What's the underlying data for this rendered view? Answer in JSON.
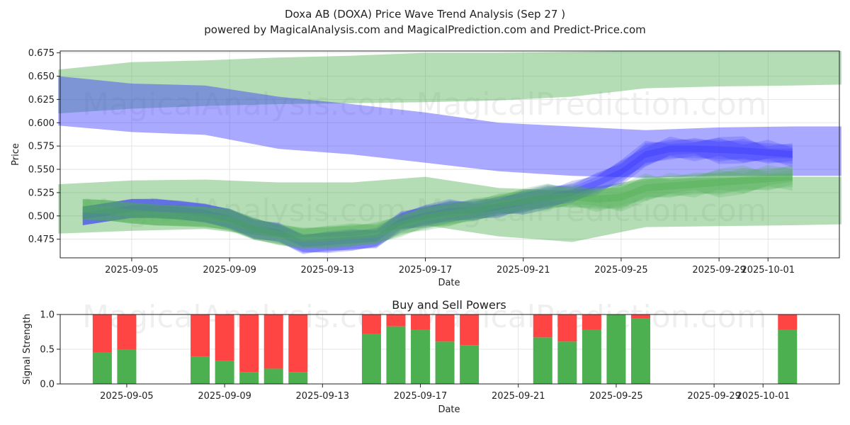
{
  "title": "Doxa AB (DOXA) Price Wave Trend Analysis (Sep 27 )",
  "subtitle": "powered by MagicalAnalysis.com and MagicalPrediction.com and Predict-Price.com",
  "watermarks": [
    "MagicalAnalysis.com",
    "MagicalPrediction.com"
  ],
  "colors": {
    "green_band": "#4caf50",
    "blue_band": "#3333ff",
    "buy": "#4caf50",
    "sell": "#ff4444",
    "grid": "#dddddd",
    "axis": "#222222"
  },
  "chart_data": [
    {
      "type": "area",
      "title": "",
      "xlabel": "Date",
      "ylabel": "Price",
      "ylim": [
        0.455,
        0.677
      ],
      "x_ticks": [
        "2025-09-05",
        "2025-09-09",
        "2025-09-13",
        "2025-09-17",
        "2025-09-21",
        "2025-09-25",
        "2025-09-29",
        "2025-10-01"
      ],
      "y_ticks": [
        "0.475",
        "0.500",
        "0.525",
        "0.550",
        "0.575",
        "0.600",
        "0.625",
        "0.650",
        "0.675"
      ],
      "grid": true,
      "series": [
        {
          "name": "green upper band",
          "color": "green",
          "dates": [
            "2025-09-02",
            "2025-09-05",
            "2025-09-08",
            "2025-09-11",
            "2025-09-14",
            "2025-09-17",
            "2025-09-20",
            "2025-09-23",
            "2025-09-26",
            "2025-09-29",
            "2025-10-02",
            "2025-10-04"
          ],
          "upper": [
            0.657,
            0.665,
            0.667,
            0.67,
            0.672,
            0.675,
            0.675,
            0.676,
            0.677,
            0.677,
            0.677,
            0.677
          ],
          "lower": [
            0.61,
            0.615,
            0.618,
            0.62,
            0.621,
            0.622,
            0.624,
            0.628,
            0.637,
            0.639,
            0.64,
            0.641
          ]
        },
        {
          "name": "blue upper band",
          "color": "blue",
          "dates": [
            "2025-09-02",
            "2025-09-05",
            "2025-09-08",
            "2025-09-11",
            "2025-09-14",
            "2025-09-17",
            "2025-09-20",
            "2025-09-23",
            "2025-09-26",
            "2025-09-29",
            "2025-10-02",
            "2025-10-04"
          ],
          "upper": [
            0.65,
            0.642,
            0.64,
            0.628,
            0.62,
            0.611,
            0.6,
            0.596,
            0.592,
            0.595,
            0.596,
            0.596
          ],
          "lower": [
            0.597,
            0.59,
            0.587,
            0.572,
            0.566,
            0.557,
            0.548,
            0.543,
            0.541,
            0.543,
            0.543,
            0.543
          ]
        },
        {
          "name": "green lower band",
          "color": "green",
          "dates": [
            "2025-09-02",
            "2025-09-05",
            "2025-09-08",
            "2025-09-11",
            "2025-09-14",
            "2025-09-17",
            "2025-09-20",
            "2025-09-23",
            "2025-09-26",
            "2025-09-29",
            "2025-10-02",
            "2025-10-04"
          ],
          "upper": [
            0.534,
            0.538,
            0.539,
            0.536,
            0.536,
            0.542,
            0.53,
            0.527,
            0.54,
            0.541,
            0.542,
            0.542
          ],
          "lower": [
            0.481,
            0.484,
            0.486,
            0.477,
            0.478,
            0.49,
            0.478,
            0.472,
            0.488,
            0.489,
            0.49,
            0.491
          ]
        },
        {
          "name": "price wave (blue)",
          "color": "blue",
          "dates": [
            "2025-09-03",
            "2025-09-04",
            "2025-09-05",
            "2025-09-06",
            "2025-09-07",
            "2025-09-08",
            "2025-09-09",
            "2025-09-10",
            "2025-09-11",
            "2025-09-12",
            "2025-09-13",
            "2025-09-14",
            "2025-09-15",
            "2025-09-16",
            "2025-09-17",
            "2025-09-18",
            "2025-09-19",
            "2025-09-20",
            "2025-09-21",
            "2025-09-22",
            "2025-09-23",
            "2025-09-24",
            "2025-09-25",
            "2025-09-26",
            "2025-09-27",
            "2025-09-28",
            "2025-09-29",
            "2025-09-30",
            "2025-10-01",
            "2025-10-02"
          ],
          "values": [
            0.5,
            0.504,
            0.508,
            0.508,
            0.506,
            0.503,
            0.497,
            0.486,
            0.482,
            0.47,
            0.472,
            0.474,
            0.476,
            0.494,
            0.5,
            0.505,
            0.506,
            0.51,
            0.515,
            0.52,
            0.525,
            0.535,
            0.547,
            0.566,
            0.572,
            0.572,
            0.571,
            0.57,
            0.568,
            0.566
          ],
          "spread": 0.01
        },
        {
          "name": "price wave (green)",
          "color": "green",
          "dates": [
            "2025-09-03",
            "2025-09-04",
            "2025-09-05",
            "2025-09-06",
            "2025-09-07",
            "2025-09-08",
            "2025-09-09",
            "2025-09-10",
            "2025-09-11",
            "2025-09-12",
            "2025-09-13",
            "2025-09-14",
            "2025-09-15",
            "2025-09-16",
            "2025-09-17",
            "2025-09-18",
            "2025-09-19",
            "2025-09-20",
            "2025-09-21",
            "2025-09-22",
            "2025-09-23",
            "2025-09-24",
            "2025-09-25",
            "2025-09-26",
            "2025-09-27",
            "2025-09-28",
            "2025-09-29",
            "2025-09-30",
            "2025-10-01",
            "2025-10-02"
          ],
          "values": [
            0.507,
            0.506,
            0.503,
            0.501,
            0.5,
            0.499,
            0.496,
            0.486,
            0.48,
            0.476,
            0.477,
            0.479,
            0.481,
            0.49,
            0.498,
            0.502,
            0.506,
            0.512,
            0.516,
            0.52,
            0.521,
            0.518,
            0.52,
            0.53,
            0.532,
            0.534,
            0.536,
            0.538,
            0.54,
            0.542
          ],
          "spread": 0.011
        }
      ]
    },
    {
      "type": "bar",
      "title": "Buy and Sell Powers",
      "xlabel": "Date",
      "ylabel": "Signal Strength",
      "ylim": [
        0,
        1
      ],
      "x_ticks": [
        "2025-09-05",
        "2025-09-09",
        "2025-09-13",
        "2025-09-17",
        "2025-09-21",
        "2025-09-25",
        "2025-09-29",
        "2025-10-01"
      ],
      "y_ticks": [
        "0.0",
        "0.5",
        "1.0"
      ],
      "grid": true,
      "categories": [
        "2025-09-04",
        "2025-09-05",
        "2025-09-08",
        "2025-09-09",
        "2025-09-10",
        "2025-09-11",
        "2025-09-12",
        "2025-09-15",
        "2025-09-16",
        "2025-09-17",
        "2025-09-18",
        "2025-09-19",
        "2025-09-22",
        "2025-09-23",
        "2025-09-24",
        "2025-09-25",
        "2025-09-26",
        "2025-10-02"
      ],
      "series": [
        {
          "name": "Buy",
          "values": [
            0.45,
            0.5,
            0.39,
            0.33,
            0.17,
            0.22,
            0.17,
            0.72,
            0.83,
            0.78,
            0.61,
            0.56,
            0.67,
            0.61,
            0.78,
            1.0,
            0.94,
            0.78
          ]
        },
        {
          "name": "Sell",
          "values": [
            0.55,
            0.5,
            0.61,
            0.67,
            0.83,
            0.78,
            0.83,
            0.28,
            0.17,
            0.22,
            0.39,
            0.44,
            0.33,
            0.39,
            0.22,
            0.0,
            0.06,
            0.22
          ]
        }
      ]
    }
  ]
}
